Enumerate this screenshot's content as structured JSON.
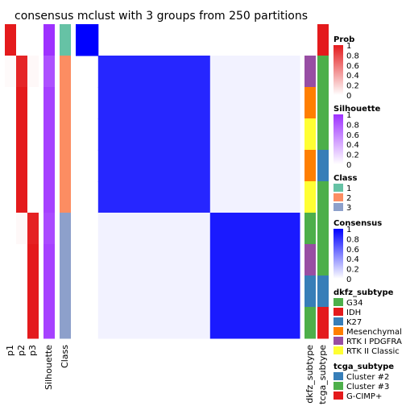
{
  "chart_data": {
    "type": "heatmap",
    "title": "consensus mclust with 3 groups from 250 partitions",
    "samples": [
      {
        "class": 1,
        "p": [
          1,
          0,
          0
        ],
        "silhouette": 1.0,
        "dkfz": "none",
        "tcga": "G-CIMP+"
      },
      {
        "class": 2,
        "p": [
          0.02,
          0.95,
          0.03
        ],
        "silhouette": 0.85,
        "dkfz": "RTK I PDGFRA",
        "tcga": "Cluster #3"
      },
      {
        "class": 2,
        "p": [
          0,
          1,
          0
        ],
        "silhouette": 0.92,
        "dkfz": "Mesenchymal",
        "tcga": "Cluster #3"
      },
      {
        "class": 2,
        "p": [
          0,
          1,
          0
        ],
        "silhouette": 0.92,
        "dkfz": "RTK II Classic",
        "tcga": "Cluster #3"
      },
      {
        "class": 2,
        "p": [
          0,
          1,
          0
        ],
        "silhouette": 0.92,
        "dkfz": "Mesenchymal",
        "tcga": "Cluster #2"
      },
      {
        "class": 2,
        "p": [
          0,
          1,
          0
        ],
        "silhouette": 0.92,
        "dkfz": "RTK II Classic",
        "tcga": "Cluster #3"
      },
      {
        "class": 3,
        "p": [
          0,
          0.03,
          0.97
        ],
        "silhouette": 0.88,
        "dkfz": "G34",
        "tcga": "Cluster #3"
      },
      {
        "class": 3,
        "p": [
          0,
          0,
          1
        ],
        "silhouette": 0.92,
        "dkfz": "RTK I PDGFRA",
        "tcga": "Cluster #3"
      },
      {
        "class": 3,
        "p": [
          0,
          0,
          1
        ],
        "silhouette": 0.92,
        "dkfz": "K27",
        "tcga": "Cluster #2"
      },
      {
        "class": 3,
        "p": [
          0,
          0,
          1
        ],
        "silhouette": 0.92,
        "dkfz": "G34",
        "tcga": "G-CIMP+"
      }
    ],
    "consensus_blocks": [
      {
        "rows": [
          1,
          1
        ],
        "cols": [
          1,
          1
        ],
        "value": 1.0
      },
      {
        "rows": [
          2,
          2
        ],
        "cols": [
          2,
          2
        ],
        "value": 0.85
      },
      {
        "rows": [
          3,
          3
        ],
        "cols": [
          3,
          3
        ],
        "value": 0.9
      },
      {
        "rows": [
          2,
          2
        ],
        "cols": [
          3,
          3
        ],
        "value": 0.05
      },
      {
        "rows": [
          3,
          3
        ],
        "cols": [
          2,
          2
        ],
        "value": 0.05
      }
    ],
    "track_labels": [
      "p1",
      "p2",
      "p3",
      "Silhouette",
      "Class",
      "dkfz_subtype",
      "tcga_subtype"
    ],
    "legends": [
      {
        "title": "Prob",
        "type": "continuous",
        "colors": [
          "#ffffff",
          "#e41a1c"
        ],
        "ticks": [
          "1",
          "0.8",
          "0.6",
          "0.4",
          "0.2",
          "0"
        ]
      },
      {
        "title": "Silhouette",
        "type": "continuous",
        "colors": [
          "#ffffff",
          "#9e31ff"
        ],
        "ticks": [
          "1",
          "0.8",
          "0.6",
          "0.4",
          "0.2",
          "0"
        ]
      },
      {
        "title": "Class",
        "type": "discrete",
        "items": [
          {
            "label": "1",
            "color": "#66c2a5"
          },
          {
            "label": "2",
            "color": "#fc8d62"
          },
          {
            "label": "3",
            "color": "#8da0cb"
          }
        ]
      },
      {
        "title": "Consensus",
        "type": "continuous",
        "colors": [
          "#ffffff",
          "#0000ff"
        ],
        "ticks": [
          "1",
          "0.8",
          "0.6",
          "0.4",
          "0.2",
          "0"
        ]
      },
      {
        "title": "dkfz_subtype",
        "type": "discrete",
        "items": [
          {
            "label": "G34",
            "color": "#4daf4a"
          },
          {
            "label": "IDH",
            "color": "#e41a1c"
          },
          {
            "label": "K27",
            "color": "#377eb8"
          },
          {
            "label": "Mesenchymal",
            "color": "#ff7f00"
          },
          {
            "label": "RTK I PDGFRA",
            "color": "#984ea3"
          },
          {
            "label": "RTK II Classic",
            "color": "#ffff33"
          }
        ]
      },
      {
        "title": "tcga_subtype",
        "type": "discrete",
        "items": [
          {
            "label": "Cluster #2",
            "color": "#377eb8"
          },
          {
            "label": "Cluster #3",
            "color": "#4daf4a"
          },
          {
            "label": "G-CIMP+",
            "color": "#e41a1c"
          }
        ]
      }
    ],
    "colors": {
      "prob": "#e41a1c",
      "silhouette": "#9e31ff",
      "consensus": "#0000ff"
    }
  }
}
